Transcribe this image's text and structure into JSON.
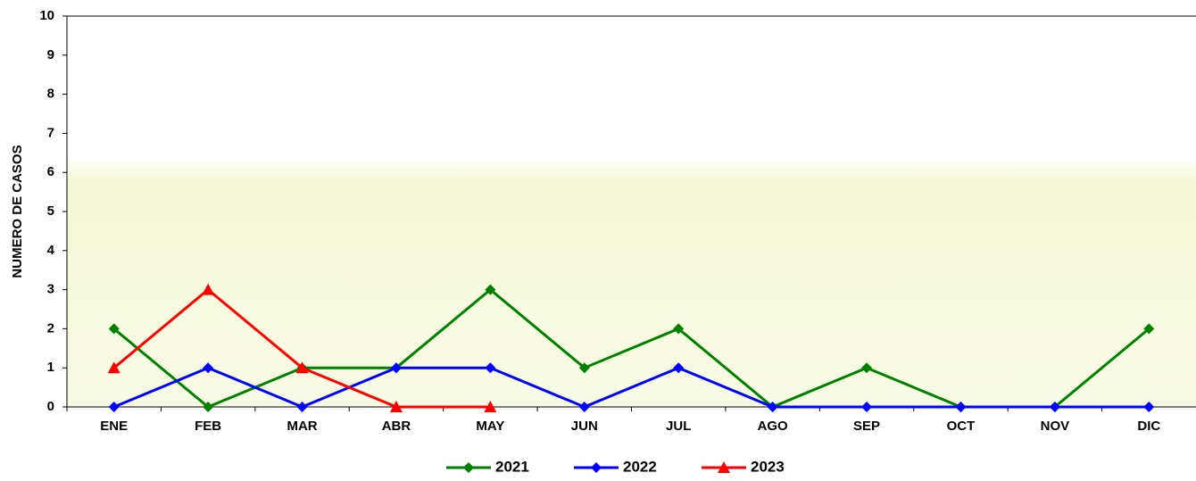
{
  "chart_data": {
    "type": "line",
    "y_label": "NUMERO DE CASOS",
    "categories": [
      "ENE",
      "FEB",
      "MAR",
      "ABR",
      "MAY",
      "JUN",
      "JUL",
      "AGO",
      "SEP",
      "OCT",
      "NOV",
      "DIC"
    ],
    "series": [
      {
        "name": "2021",
        "color": "#008000",
        "marker": "diamond",
        "values": [
          2,
          0,
          1,
          1,
          3,
          1,
          2,
          0,
          1,
          0,
          0,
          2
        ]
      },
      {
        "name": "2022",
        "color": "#0000ff",
        "marker": "diamond",
        "values": [
          0,
          1,
          0,
          1,
          1,
          0,
          1,
          0,
          0,
          0,
          0,
          0
        ]
      },
      {
        "name": "2023",
        "color": "#ff0000",
        "marker": "triangle",
        "values": [
          1,
          3,
          1,
          0,
          0,
          null,
          null,
          null,
          null,
          null,
          null,
          null
        ]
      }
    ],
    "ylim": [
      0,
      10
    ],
    "yticks": [
      0,
      1,
      2,
      3,
      4,
      5,
      6,
      7,
      8,
      9,
      10
    ],
    "legend": "bottom"
  }
}
